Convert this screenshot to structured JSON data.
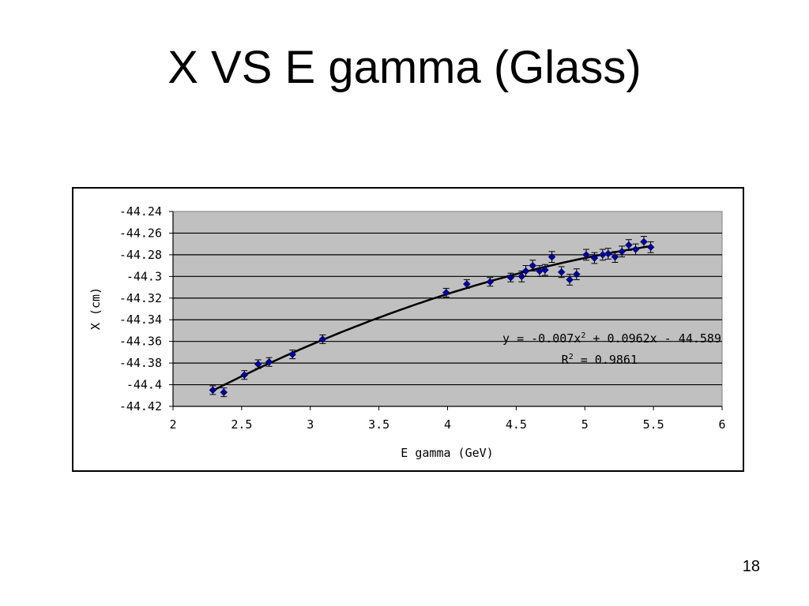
{
  "slide": {
    "title": "X VS E gamma (Glass)",
    "number": "18"
  },
  "chart_data": {
    "type": "scatter",
    "title": "",
    "xlabel": "E gamma (GeV)",
    "ylabel": "X (cm)",
    "xlim": [
      2,
      6
    ],
    "ylim": [
      -44.42,
      -44.24
    ],
    "x_ticks": [
      2,
      2.5,
      3,
      3.5,
      4,
      4.5,
      5,
      5.5,
      6
    ],
    "y_ticks": [
      -44.24,
      -44.26,
      -44.28,
      -44.3,
      -44.32,
      -44.34,
      -44.36,
      -44.38,
      -44.4,
      -44.42
    ],
    "x_tick_labels": [
      "2",
      "2.5",
      "3",
      "3.5",
      "4",
      "4.5",
      "5",
      "5.5",
      "6"
    ],
    "y_tick_labels": [
      "-44.24",
      "-44.26",
      "-44.28",
      "-44.3",
      "-44.32",
      "-44.34",
      "-44.36",
      "-44.38",
      "-44.4",
      "-44.42"
    ],
    "grid": "horizontal",
    "plot_background": "#c0c0c0",
    "marker_color": "#000099",
    "trendline_color": "#000000",
    "series": [
      {
        "points": [
          {
            "x": 2.29,
            "y": -44.405,
            "err": 0.004
          },
          {
            "x": 2.37,
            "y": -44.407,
            "err": 0.004
          },
          {
            "x": 2.52,
            "y": -44.391,
            "err": 0.004
          },
          {
            "x": 2.62,
            "y": -44.381,
            "err": 0.004
          },
          {
            "x": 2.7,
            "y": -44.379,
            "err": 0.004
          },
          {
            "x": 2.87,
            "y": -44.372,
            "err": 0.004
          },
          {
            "x": 3.09,
            "y": -44.358,
            "err": 0.004
          },
          {
            "x": 3.99,
            "y": -44.315,
            "err": 0.004
          },
          {
            "x": 4.14,
            "y": -44.307,
            "err": 0.004
          },
          {
            "x": 4.31,
            "y": -44.305,
            "err": 0.004
          },
          {
            "x": 4.46,
            "y": -44.301,
            "err": 0.004
          },
          {
            "x": 4.54,
            "y": -44.3,
            "err": 0.005
          },
          {
            "x": 4.57,
            "y": -44.295,
            "err": 0.005
          },
          {
            "x": 4.62,
            "y": -44.29,
            "err": 0.005
          },
          {
            "x": 4.67,
            "y": -44.295,
            "err": 0.005
          },
          {
            "x": 4.71,
            "y": -44.294,
            "err": 0.005
          },
          {
            "x": 4.76,
            "y": -44.282,
            "err": 0.005
          },
          {
            "x": 4.83,
            "y": -44.296,
            "err": 0.005
          },
          {
            "x": 4.89,
            "y": -44.303,
            "err": 0.005
          },
          {
            "x": 4.94,
            "y": -44.298,
            "err": 0.005
          },
          {
            "x": 5.01,
            "y": -44.28,
            "err": 0.005
          },
          {
            "x": 5.07,
            "y": -44.283,
            "err": 0.005
          },
          {
            "x": 5.13,
            "y": -44.28,
            "err": 0.005
          },
          {
            "x": 5.17,
            "y": -44.279,
            "err": 0.005
          },
          {
            "x": 5.22,
            "y": -44.282,
            "err": 0.005
          },
          {
            "x": 5.27,
            "y": -44.277,
            "err": 0.005
          },
          {
            "x": 5.32,
            "y": -44.271,
            "err": 0.005
          },
          {
            "x": 5.37,
            "y": -44.275,
            "err": 0.005
          },
          {
            "x": 5.43,
            "y": -44.268,
            "err": 0.005
          },
          {
            "x": 5.48,
            "y": -44.273,
            "err": 0.005
          }
        ]
      }
    ],
    "trendline": {
      "type": "polynomial",
      "coefficients": [
        -0.007,
        0.0962,
        -44.589
      ],
      "x_range": [
        2.29,
        5.48
      ],
      "equation_text": "y = -0.007x",
      "equation_exp": "2",
      "equation_rest": " + 0.0962x - 44.589",
      "r2_text": "R",
      "r2_exp": "2",
      "r2_rest": " = 0.9861"
    }
  }
}
